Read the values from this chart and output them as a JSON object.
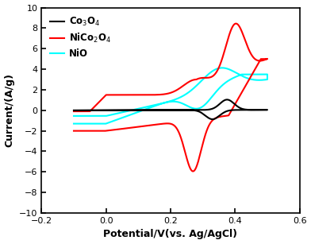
{
  "xlabel": "Potential/V(vs. Ag/AgCl)",
  "ylabel": "Current/(A/g)",
  "xlim": [
    -0.2,
    0.6
  ],
  "ylim": [
    -10,
    10
  ],
  "xticks": [
    -0.2,
    0.0,
    0.2,
    0.4,
    0.6
  ],
  "yticks": [
    -10,
    -8,
    -6,
    -4,
    -2,
    0,
    2,
    4,
    6,
    8,
    10
  ],
  "linewidth": 1.5,
  "co3o4_color": "black",
  "nico2o4_color": "red",
  "nio_color": "cyan"
}
